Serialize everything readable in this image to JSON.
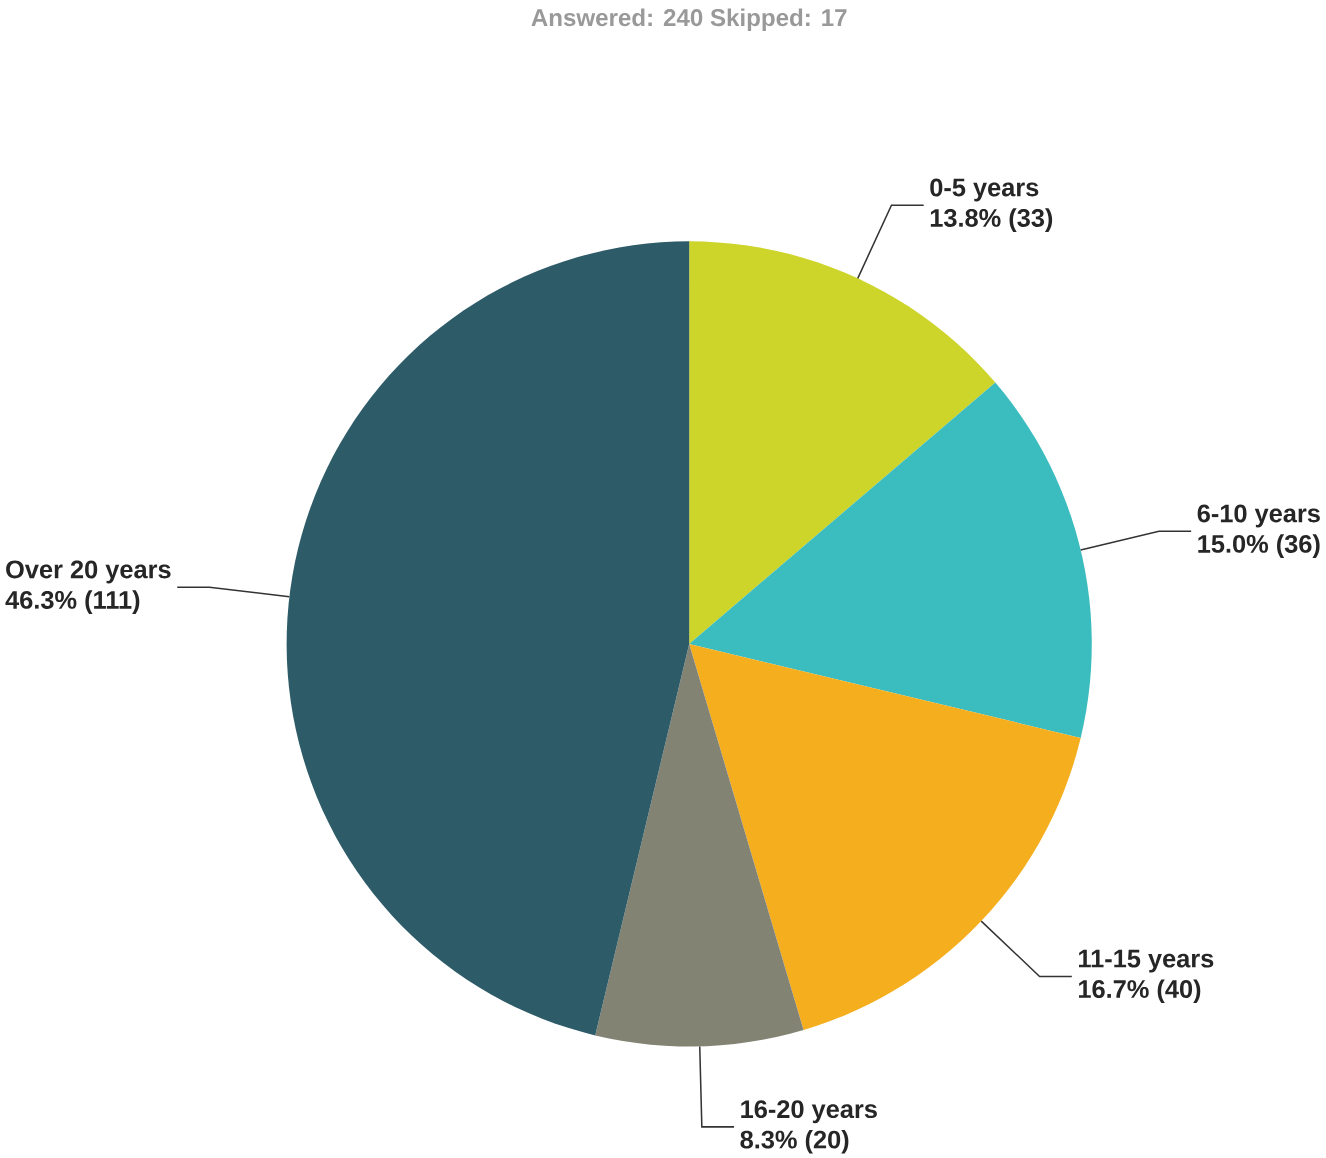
{
  "chart_data": {
    "type": "pie",
    "subtitle": "Answered: 240    Skipped: 17",
    "categories": [
      "0-5 years",
      "6-10 years",
      "11-15 years",
      "16-20 years",
      "Over 20 years"
    ],
    "values": [
      33,
      36,
      40,
      20,
      111
    ],
    "value_labels": [
      "13.8% (33)",
      "15.0% (36)",
      "16.7% (40)",
      "8.3% (20)",
      "46.3% (111)"
    ],
    "colors": [
      "#cdd42a",
      "#3bbcbf",
      "#f5ae1e",
      "#838374",
      "#2d5b68"
    ]
  }
}
